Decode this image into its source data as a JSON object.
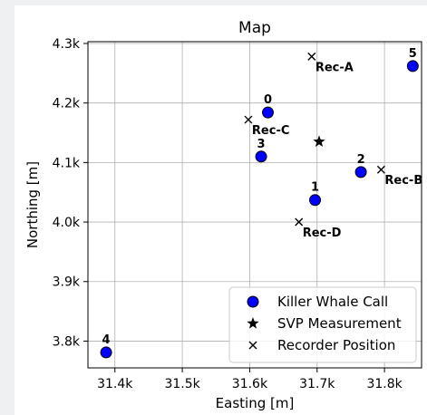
{
  "chart_data": {
    "type": "scatter",
    "title": "Map",
    "xlabel": "Easting [m]",
    "ylabel": "Northing [m]",
    "xlim": [
      31360,
      31855
    ],
    "ylim": [
      3755,
      4303
    ],
    "x_ticks": [
      31400,
      31500,
      31600,
      31700,
      31800
    ],
    "x_tick_labels": [
      "31.4k",
      "31.5k",
      "31.6k",
      "31.7k",
      "31.8k"
    ],
    "y_ticks": [
      3800,
      3900,
      4000,
      4100,
      4200,
      4300
    ],
    "y_tick_labels": [
      "3.8k",
      "3.9k",
      "4.0k",
      "4.1k",
      "4.2k",
      "4.3k"
    ],
    "grid": true,
    "legend_position": "lower right",
    "series": [
      {
        "name": "Killer Whale Call",
        "marker": "circle",
        "color": "#0000ff",
        "points": [
          {
            "label": "0",
            "x": 31627,
            "y": 4184
          },
          {
            "label": "1",
            "x": 31697,
            "y": 4037
          },
          {
            "label": "2",
            "x": 31765,
            "y": 4084
          },
          {
            "label": "3",
            "x": 31617,
            "y": 4110
          },
          {
            "label": "4",
            "x": 31387,
            "y": 3781
          },
          {
            "label": "5",
            "x": 31842,
            "y": 4262
          }
        ]
      },
      {
        "name": "SVP Measurement",
        "marker": "star",
        "color": "#000000",
        "points": [
          {
            "label": "",
            "x": 31703,
            "y": 4135
          }
        ]
      },
      {
        "name": "Recorder Position",
        "marker": "x",
        "color": "#000000",
        "points": [
          {
            "label": "Rec-A",
            "x": 31692,
            "y": 4278
          },
          {
            "label": "Rec-B",
            "x": 31795,
            "y": 4088
          },
          {
            "label": "Rec-C",
            "x": 31598,
            "y": 4172
          },
          {
            "label": "Rec-D",
            "x": 31673,
            "y": 4000
          }
        ]
      }
    ]
  }
}
